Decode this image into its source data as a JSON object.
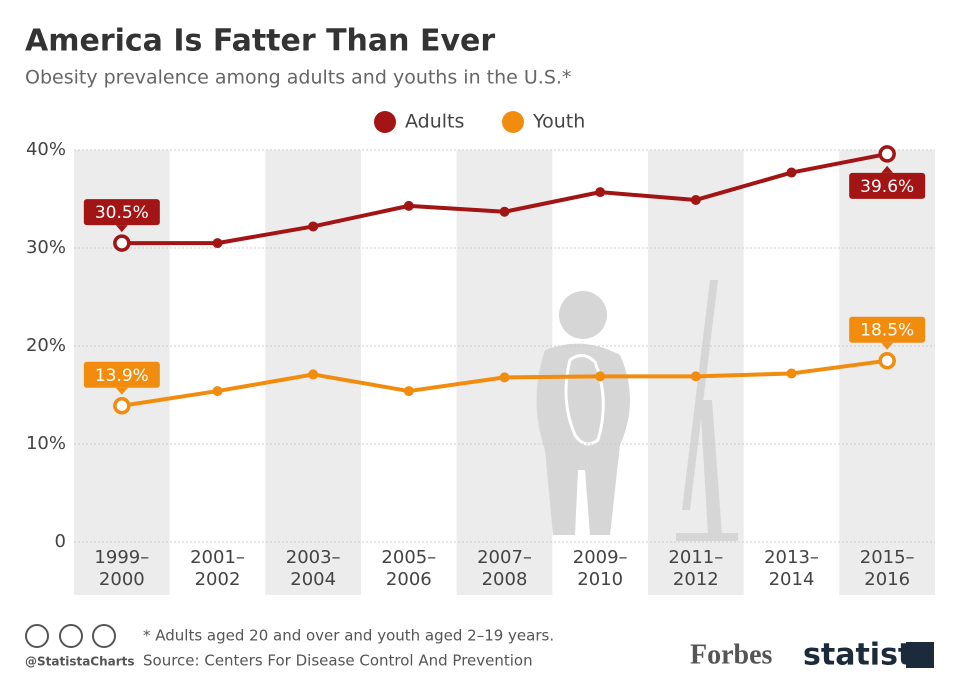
{
  "chart_data": {
    "type": "line",
    "title": "America Is Fatter Than Ever",
    "subtitle": "Obesity prevalence among adults and youths in the U.S.*",
    "categories": [
      "1999–2000",
      "2001–2002",
      "2003–2004",
      "2005–2006",
      "2007–2008",
      "2009–2010",
      "2011–2012",
      "2013–2014",
      "2015–2016"
    ],
    "series": [
      {
        "name": "Adults",
        "color": "#a31515",
        "values": [
          30.5,
          30.5,
          32.2,
          34.3,
          33.7,
          35.7,
          34.9,
          37.7,
          39.6
        ],
        "value_labels": [
          "30.5%",
          null,
          null,
          null,
          null,
          null,
          null,
          null,
          "39.6%"
        ]
      },
      {
        "name": "Youth",
        "color": "#f28c0f",
        "values": [
          13.9,
          15.4,
          17.1,
          15.4,
          16.8,
          16.9,
          16.9,
          17.2,
          18.5
        ],
        "value_labels": [
          "13.9%",
          null,
          null,
          null,
          null,
          null,
          null,
          null,
          "18.5%"
        ]
      }
    ],
    "ylim": [
      0,
      40
    ],
    "yticks": [
      0,
      {
        "value": 10,
        "label": "10%"
      },
      {
        "value": 20,
        "label": "20%"
      },
      {
        "value": 30,
        "label": "30%"
      },
      {
        "value": 40,
        "label": "40%"
      }
    ],
    "grid": true,
    "legend": "top",
    "footnote": "* Adults aged 20 and over and youth aged 2–19 years.",
    "source": "Source: Centers For Disease Control And Prevention",
    "handle": "@StatistaCharts",
    "partner": "Forbes",
    "brand": "statista"
  }
}
